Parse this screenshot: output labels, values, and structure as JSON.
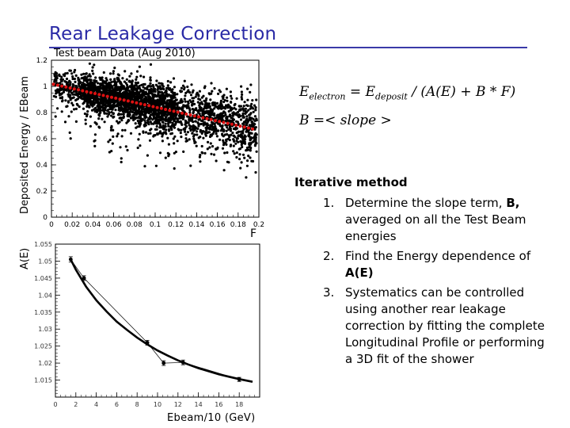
{
  "slide": {
    "title": "Rear Leakage Correction",
    "accent_color": "#2a2aa6"
  },
  "top_plot": {
    "subtitle": "Test beam Data (Aug 2010)",
    "ylabel": "Deposited Energy / EBeam",
    "xlabel": "F"
  },
  "bottom_plot": {
    "ylabel": "A(E)",
    "xlabel": "Ebeam/10 (GeV)"
  },
  "equations": {
    "line1": {
      "lhs": "E",
      "lhs_sub": "electron",
      "equals": " = ",
      "e2": "E",
      "e2_sub": "deposit",
      "rest": " / (A(E) + B * F)"
    },
    "line2": "B =< slope >"
  },
  "method": {
    "heading": "Iterative method",
    "items": [
      {
        "num": "1.",
        "pre": "Determine the slope term, ",
        "bold": "B,",
        "post": " averaged on all the Test Beam energies"
      },
      {
        "num": "2.",
        "pre": "Find  the Energy dependence of ",
        "bold": "A(E)",
        "post": ""
      },
      {
        "num": "3.",
        "pre": "Systematics can be controlled using another rear leakage correction by fitting the complete Longitudinal Profile or performing a 3D fit of the shower",
        "bold": "",
        "post": ""
      }
    ]
  },
  "chart_data": [
    {
      "type": "scatter",
      "title": "Test beam Data (Aug 2010)",
      "xlabel": "F",
      "ylabel": "Deposited Energy / EBeam",
      "xlim": [
        0,
        0.2
      ],
      "ylim": [
        0,
        1.2
      ],
      "x_ticks": [
        "0",
        "0.02",
        "0.04",
        "0.06",
        "0.08",
        "0.1",
        "0.12",
        "0.14",
        "0.16",
        "0.18",
        "0.2"
      ],
      "y_ticks": [
        "0",
        "0.2",
        "0.4",
        "0.6",
        "0.8",
        "1",
        "1.2"
      ],
      "grid": false,
      "point_color": "#000000",
      "profile_color": "#dd1111",
      "profile_fit": {
        "name": "",
        "intercept": 1.02,
        "slope": -1.78,
        "x_range": [
          0.002,
          0.198
        ]
      }
    },
    {
      "type": "line",
      "xlabel": "Ebeam/10 (GeV)",
      "ylabel": "A(E)",
      "xlim": [
        0,
        20
      ],
      "ylim": [
        1.01,
        1.055
      ],
      "x_ticks": [
        "0",
        "2",
        "4",
        "6",
        "8",
        "10",
        "12",
        "14",
        "16",
        "18"
      ],
      "y_ticks": [
        "1.015",
        "1.02",
        "1.025",
        "1.03",
        "1.035",
        "1.04",
        "1.045",
        "1.05",
        "1.055"
      ],
      "grid": false,
      "points": [
        {
          "x": 1.5,
          "y": 1.0505,
          "err": 0.0008
        },
        {
          "x": 2.8,
          "y": 1.045,
          "err": 0.0007
        },
        {
          "x": 9.0,
          "y": 1.026,
          "err": 0.0007
        },
        {
          "x": 10.6,
          "y": 1.02,
          "err": 0.0007
        },
        {
          "x": 12.5,
          "y": 1.0202,
          "err": 0.0007
        },
        {
          "x": 18.0,
          "y": 1.0152,
          "err": 0.0006
        }
      ],
      "fit_curve": {
        "type": "decreasing-smooth",
        "points": [
          [
            1.5,
            1.0505
          ],
          [
            2,
            1.0475
          ],
          [
            3,
            1.0425
          ],
          [
            4,
            1.0385
          ],
          [
            5,
            1.0352
          ],
          [
            6,
            1.0322
          ],
          [
            7,
            1.0298
          ],
          [
            8,
            1.0275
          ],
          [
            9,
            1.0255
          ],
          [
            10,
            1.0237
          ],
          [
            11,
            1.0222
          ],
          [
            12,
            1.0208
          ],
          [
            13,
            1.0196
          ],
          [
            14,
            1.0185
          ],
          [
            15,
            1.0176
          ],
          [
            16,
            1.0167
          ],
          [
            17,
            1.016
          ],
          [
            18,
            1.0153
          ],
          [
            19.3,
            1.0145
          ]
        ]
      }
    }
  ]
}
